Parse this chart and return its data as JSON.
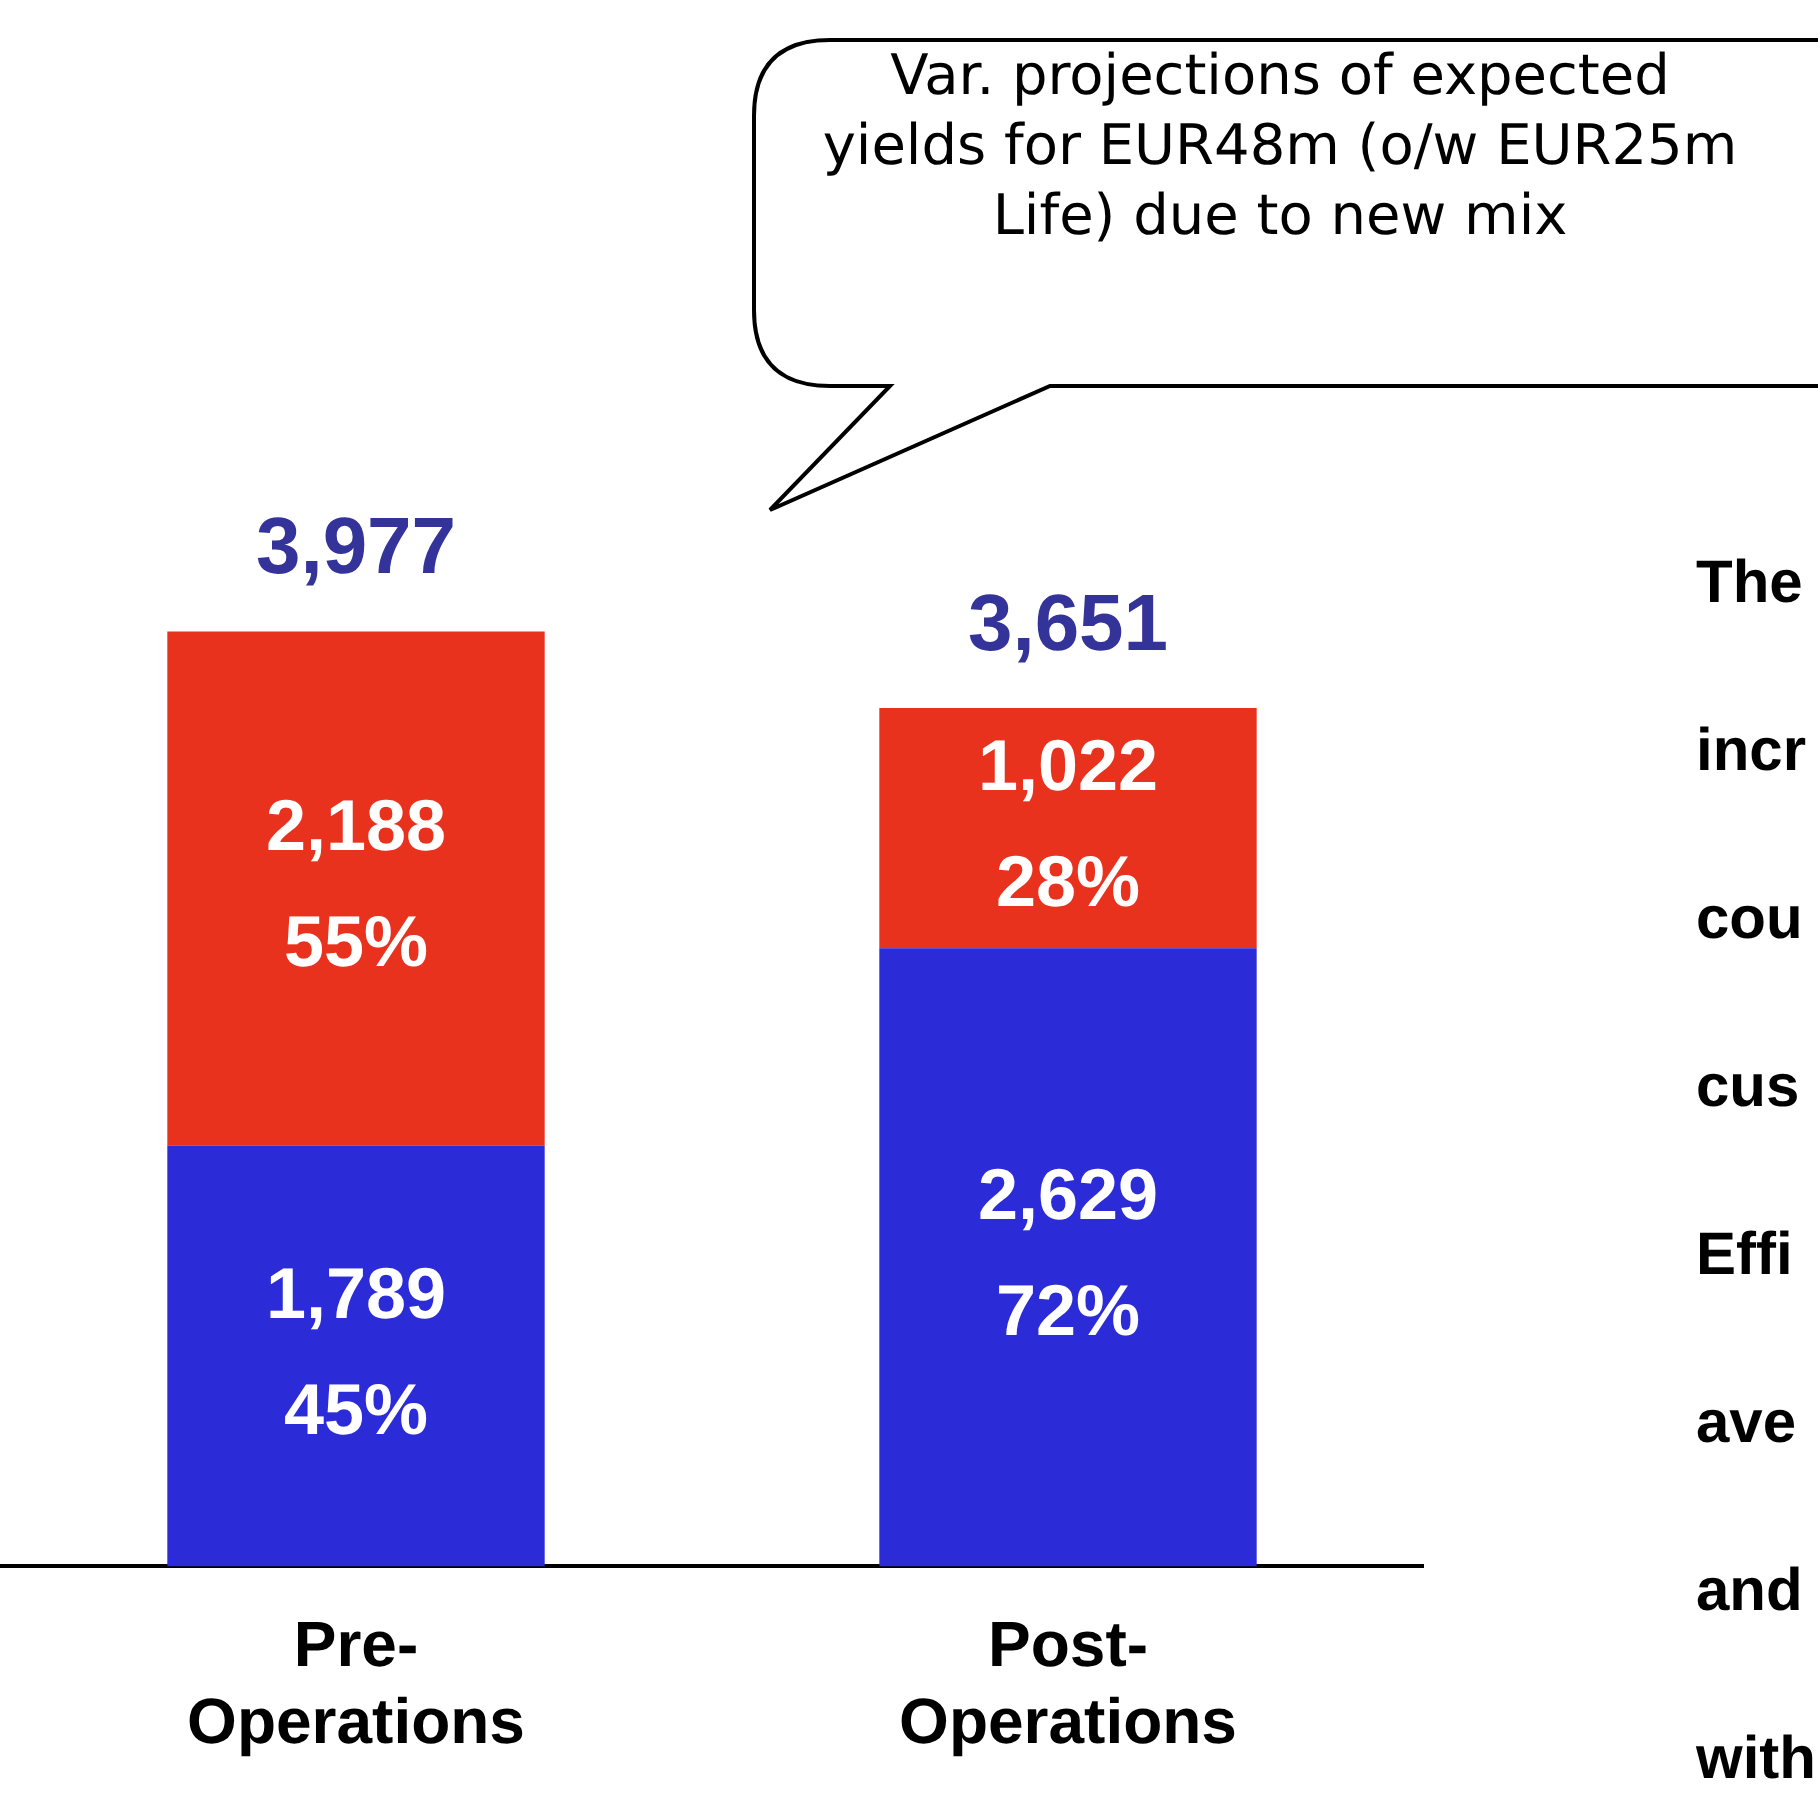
{
  "chart_data": {
    "type": "bar",
    "stacked": true,
    "categories": [
      "Pre- Operations",
      "Post- Operations"
    ],
    "series": [
      {
        "color": "#2b2bd8",
        "values": [
          1789,
          2629
        ],
        "value_labels": [
          "1,789 45%",
          "2,629 72%"
        ]
      },
      {
        "color": "#e8321e",
        "values": [
          2188,
          1022
        ],
        "value_labels": [
          "2,188 55%",
          "1,022 28%"
        ]
      }
    ],
    "totals": [
      "3,977",
      "3,651"
    ],
    "legend": false,
    "grid": false,
    "annotations": [
      "Var. projections of expected yields for EUR48m (o/w EUR25m Life) due to new mix",
      "The",
      "incr",
      "cou",
      "cus",
      "Effi",
      "ave",
      "and",
      "with"
    ]
  }
}
